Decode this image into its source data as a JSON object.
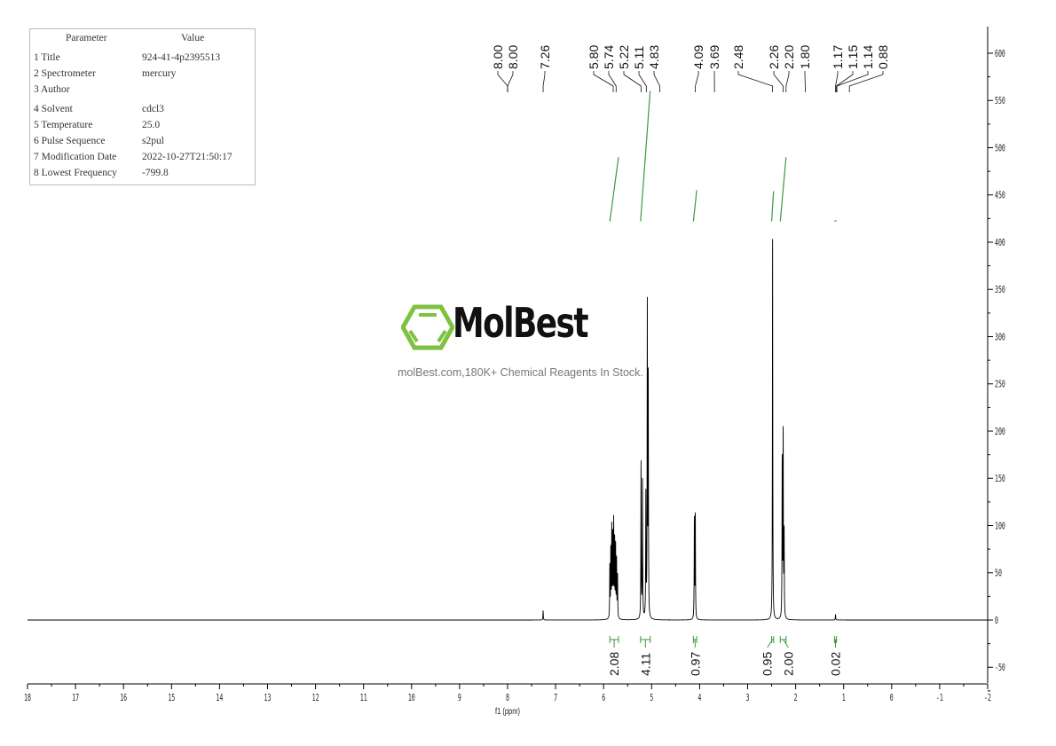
{
  "parameters": {
    "header": [
      "Parameter",
      "Value"
    ],
    "rows": [
      [
        "1 Title",
        "924-41-4p2395513"
      ],
      [
        "2 Spectrometer",
        "mercury"
      ],
      [
        "3 Author",
        ""
      ],
      [
        "4 Solvent",
        "cdcl3"
      ],
      [
        "5 Temperature",
        "25.0"
      ],
      [
        "6 Pulse Sequence",
        "s2pul"
      ],
      [
        "7 Modification Date",
        "2022-10-27T21:50:17"
      ],
      [
        "8 Lowest Frequency",
        "-799.8"
      ]
    ]
  },
  "watermark": {
    "brand": "MolBest",
    "tagline": "molBest.com,180K+ Chemical Reagents In Stock.",
    "color": "#7dc242"
  },
  "chart_data": {
    "type": "line",
    "xlabel": "f1 (ppm)",
    "xlim": [
      18,
      -2
    ],
    "ylim": [
      -60,
      630
    ],
    "x_ticks": [
      "18",
      "17",
      "16",
      "15",
      "14",
      "13",
      "12",
      "11",
      "10",
      "9",
      "8",
      "7",
      "6",
      "5",
      "4",
      "3",
      "2",
      "1",
      "0",
      "-1",
      "-2"
    ],
    "y_ticks": [
      "600",
      "550",
      "500",
      "450",
      "400",
      "350",
      "300",
      "250",
      "200",
      "150",
      "100",
      "50",
      "0",
      "-50"
    ],
    "line_color": "#000000",
    "integral_color": "#3a9a3a",
    "peaks": [
      {
        "ppm": 7.26,
        "height": 10
      },
      {
        "ppm": 5.87,
        "height": 55
      },
      {
        "ppm": 5.85,
        "height": 70
      },
      {
        "ppm": 5.83,
        "height": 95
      },
      {
        "ppm": 5.81,
        "height": 85
      },
      {
        "ppm": 5.79,
        "height": 100
      },
      {
        "ppm": 5.77,
        "height": 80
      },
      {
        "ppm": 5.75,
        "height": 75
      },
      {
        "ppm": 5.73,
        "height": 60
      },
      {
        "ppm": 5.71,
        "height": 45
      },
      {
        "ppm": 5.22,
        "height": 165
      },
      {
        "ppm": 5.19,
        "height": 145
      },
      {
        "ppm": 5.12,
        "height": 130
      },
      {
        "ppm": 5.09,
        "height": 330
      },
      {
        "ppm": 5.07,
        "height": 250
      },
      {
        "ppm": 4.11,
        "height": 105
      },
      {
        "ppm": 4.09,
        "height": 110
      },
      {
        "ppm": 2.48,
        "height": 408
      },
      {
        "ppm": 2.28,
        "height": 165
      },
      {
        "ppm": 2.26,
        "height": 195
      },
      {
        "ppm": 2.24,
        "height": 90
      },
      {
        "ppm": 1.17,
        "height": 6
      }
    ],
    "peak_labels": [
      "8.00",
      "8.00",
      "7.26",
      "5.80",
      "5.74",
      "5.22",
      "5.11",
      "4.83",
      "4.09",
      "3.69",
      "2.48",
      "2.26",
      "2.20",
      "1.80",
      "1.17",
      "1.15",
      "1.14",
      "0.88"
    ],
    "peak_label_ppm": [
      8.0,
      8.0,
      7.26,
      5.8,
      5.74,
      5.22,
      5.11,
      4.83,
      4.09,
      3.69,
      2.48,
      2.26,
      2.2,
      1.8,
      1.17,
      1.15,
      1.14,
      0.88
    ],
    "integrals": [
      {
        "value": "2.08",
        "from": 5.87,
        "to": 5.69,
        "curve": [
          422,
          490
        ]
      },
      {
        "value": "4.11",
        "from": 5.23,
        "to": 5.03,
        "curve": [
          422,
          560
        ]
      },
      {
        "value": "0.97",
        "from": 4.13,
        "to": 4.06,
        "curve": [
          422,
          455
        ]
      },
      {
        "value": "0.95",
        "from": 2.5,
        "to": 2.46,
        "curve": [
          422,
          454
        ]
      },
      {
        "value": "2.00",
        "from": 2.32,
        "to": 2.2,
        "curve": [
          422,
          490
        ]
      },
      {
        "value": "0.02",
        "from": 1.19,
        "to": 1.15,
        "curve": [
          422,
          423
        ]
      }
    ]
  }
}
